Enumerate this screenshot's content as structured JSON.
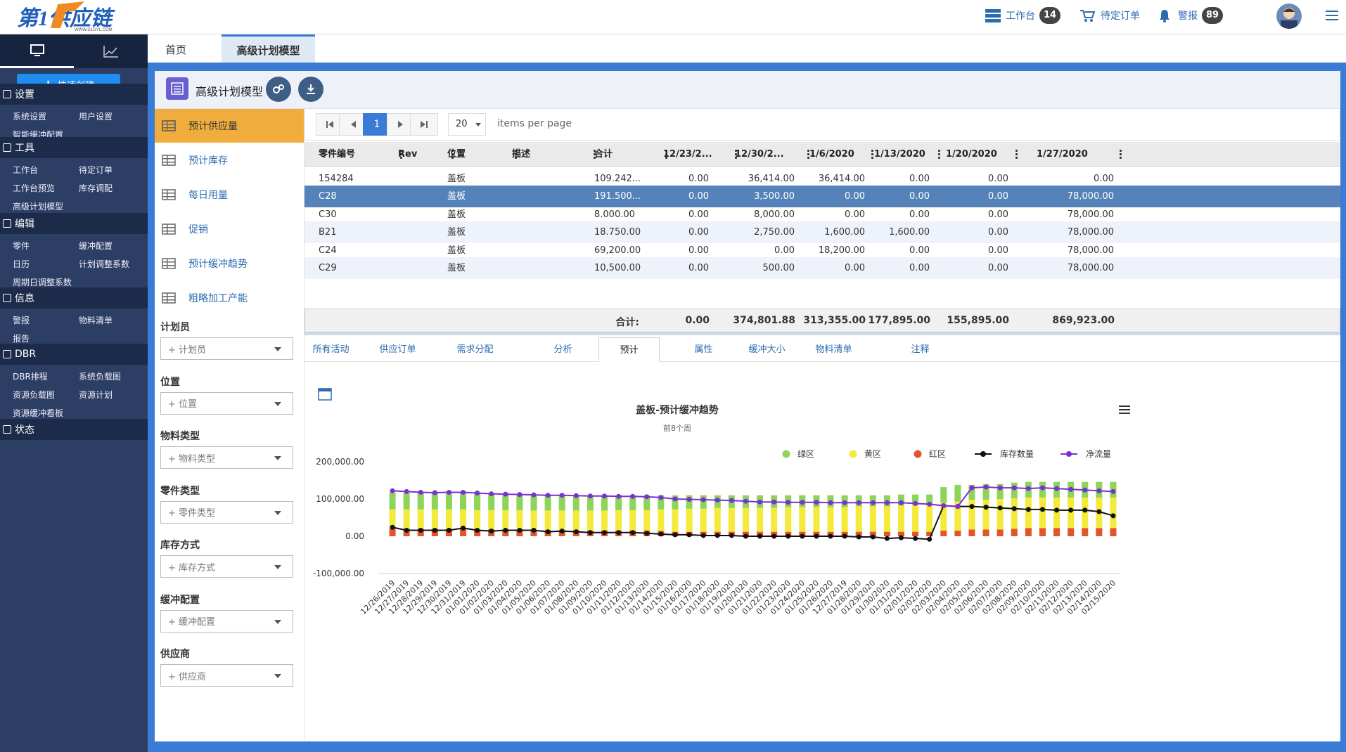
{
  "header": {
    "logo_text": "第1供应链",
    "logo_sub": "WWW.D1GYL.COM",
    "workbench": {
      "label": "工作台",
      "count": "14"
    },
    "pending_orders": "待定订单",
    "alerts": {
      "label": "警报",
      "count": "89"
    }
  },
  "sidebar": {
    "quick_create": "快速创建",
    "sections": [
      {
        "title": "设置",
        "links": [
          "系统设置",
          "用户设置",
          "智能缓冲配置"
        ]
      },
      {
        "title": "工具",
        "links": [
          "工作台",
          "待定订单",
          "工作台预览",
          "库存调配",
          "高级计划模型"
        ]
      },
      {
        "title": "编辑",
        "links": [
          "零件",
          "缓冲配置",
          "日历",
          "计划调整系数",
          "周期日调整系数"
        ]
      },
      {
        "title": "信息",
        "links": [
          "警报",
          "物料清单",
          "报告"
        ]
      },
      {
        "title": "DBR",
        "links": [
          "DBR排程",
          "系统负载图",
          "资源负载图",
          "资源计划",
          "资源缓冲看板"
        ]
      },
      {
        "title": "状态",
        "links": []
      }
    ]
  },
  "tabs": [
    "首页",
    "高级计划模型"
  ],
  "panel": {
    "title": "高级计划模型"
  },
  "leftnav": [
    "预计供应量",
    "预计库存",
    "每日用量",
    "促销",
    "预计缓冲趋势",
    "粗略加工产能"
  ],
  "filters": [
    {
      "label": "计划员",
      "placeholder": "+ 计划员"
    },
    {
      "label": "位置",
      "placeholder": "+ 位置"
    },
    {
      "label": "物料类型",
      "placeholder": "+ 物料类型"
    },
    {
      "label": "零件类型",
      "placeholder": "+ 零件类型"
    },
    {
      "label": "库存方式",
      "placeholder": "+ 库存方式"
    },
    {
      "label": "缓冲配置",
      "placeholder": "+ 缓冲配置"
    },
    {
      "label": "供应商",
      "placeholder": "+ 供应商"
    }
  ],
  "pager": {
    "page": "1",
    "page_size": "20",
    "items_per_page": "items per page"
  },
  "table": {
    "columns": [
      "零件编号",
      "Rev",
      "位置",
      "描述",
      "合计",
      "12/23/2...",
      "12/30/2...",
      "1/6/2020",
      "1/13/2020",
      "1/20/2020",
      "1/27/2020"
    ],
    "rows": [
      [
        "154284",
        "",
        "盖板",
        "",
        "109.242...",
        "0.00",
        "36,414.00",
        "36,414.00",
        "0.00",
        "0.00",
        "0.00"
      ],
      [
        "C28",
        "",
        "盖板",
        "",
        "191.500...",
        "0.00",
        "3,500.00",
        "0.00",
        "0.00",
        "0.00",
        "78,000.00"
      ],
      [
        "C30",
        "",
        "盖板",
        "",
        "8.000.00",
        "0.00",
        "8,000.00",
        "0.00",
        "0.00",
        "0.00",
        "78,000.00"
      ],
      [
        "B21",
        "",
        "盖板",
        "",
        "18.750.00",
        "0.00",
        "2,750.00",
        "1,600.00",
        "1,600.00",
        "0.00",
        "78,000.00"
      ],
      [
        "C24",
        "",
        "盖板",
        "",
        "69,200.00",
        "0.00",
        "0.00",
        "18,200.00",
        "0.00",
        "0.00",
        "78,000.00"
      ],
      [
        "C29",
        "",
        "盖板",
        "",
        "10,500.00",
        "0.00",
        "500.00",
        "0.00",
        "0.00",
        "0.00",
        "78,000.00"
      ]
    ],
    "selected_row": 1,
    "total_label": "合计:",
    "totals": [
      "0.00",
      "374,801.88",
      "313,355.00",
      "177,895.00",
      "155,895.00",
      "869,923.00"
    ]
  },
  "bottom_tabs": [
    "所有活动",
    "供应订单",
    "需求分配",
    "分析",
    "预计",
    "属性",
    "缓冲大小",
    "物料清单",
    "注释"
  ],
  "bottom_active": 4,
  "chart_data": {
    "type": "bar",
    "title": "盖板-预计缓冲趋势",
    "subtitle": "前8个周",
    "legend_position": "top-right",
    "y_ticks": [
      "200,000.00",
      "100,000.00",
      "0.00",
      "-100,000.00"
    ],
    "ylim": [
      -100000,
      200000
    ],
    "categories": [
      "12/26/2019",
      "12/27/2019",
      "12/28/2019",
      "12/29/2019",
      "12/30/2019",
      "12/31/2019",
      "01/01/2020",
      "01/02/2020",
      "01/03/2020",
      "01/04/2020",
      "01/05/2020",
      "01/06/2020",
      "01/07/2020",
      "01/08/2020",
      "01/09/2020",
      "01/10/2020",
      "01/11/2020",
      "01/12/2020",
      "01/13/2020",
      "01/14/2020",
      "01/15/2020",
      "01/16/2020",
      "01/17/2020",
      "01/18/2020",
      "01/19/2020",
      "01/20/2020",
      "01/21/2020",
      "01/22/2020",
      "01/23/2020",
      "01/24/2020",
      "01/25/2020",
      "01/26/2020",
      "12/27/2019",
      "01/28/2020",
      "01/29/2020",
      "01/30/2020",
      "01/31/2020",
      "02/01/2020",
      "02/02/2020",
      "02/03/2020",
      "02/04/2020",
      "02/05/2020",
      "02/06/2020",
      "02/07/2020",
      "02/08/2020",
      "02/09/2020",
      "02/10/2020",
      "02/11/2020",
      "02/12/2020",
      "02/13/2020",
      "02/14/2020",
      "02/15/2020"
    ],
    "series": [
      {
        "name": "红区",
        "color": "#e2552b",
        "values": [
          20000,
          20000,
          20000,
          20000,
          20000,
          20000,
          18000,
          18000,
          18000,
          18000,
          17000,
          16000,
          16000,
          16000,
          15000,
          15000,
          15000,
          15000,
          15000,
          14000,
          12000,
          12000,
          12000,
          12000,
          12000,
          12000,
          12000,
          12000,
          12000,
          12000,
          12000,
          12000,
          12000,
          12000,
          12000,
          12000,
          12000,
          12000,
          12000,
          15000,
          15000,
          18000,
          18000,
          18000,
          20000,
          22000,
          22000,
          22000,
          22000,
          22000,
          22000,
          22000
        ]
      },
      {
        "name": "黄区",
        "color": "#f3ea3b",
        "values": [
          52000,
          52000,
          52000,
          52000,
          52000,
          52000,
          52000,
          52000,
          52000,
          52000,
          52000,
          53000,
          53000,
          53000,
          54000,
          54000,
          55000,
          55000,
          55000,
          58000,
          60000,
          62000,
          62000,
          64000,
          64000,
          64000,
          64000,
          64000,
          66000,
          66000,
          66000,
          66000,
          66000,
          68000,
          68000,
          68000,
          70000,
          72000,
          72000,
          75000,
          78000,
          80000,
          80000,
          82000,
          82000,
          82000,
          82000,
          82000,
          82000,
          82000,
          82000,
          82000
        ]
      },
      {
        "name": "绿区",
        "color": "#8dd45a",
        "values": [
          45000,
          45000,
          45000,
          45000,
          45000,
          45000,
          45000,
          44000,
          44000,
          42000,
          42000,
          40000,
          40000,
          40000,
          40000,
          40000,
          40000,
          40000,
          40000,
          38000,
          38000,
          36000,
          36000,
          34000,
          34000,
          34000,
          34000,
          34000,
          32000,
          32000,
          32000,
          32000,
          32000,
          30000,
          30000,
          30000,
          30000,
          28000,
          28000,
          42000,
          45000,
          40000,
          42000,
          40000,
          42000,
          42000,
          42000,
          42000,
          42000,
          42000,
          42000,
          42000
        ]
      },
      {
        "name": "库存数量",
        "color": "#111111",
        "values": [
          24000,
          16000,
          16000,
          16000,
          16000,
          22000,
          16000,
          14000,
          16000,
          16000,
          16000,
          12000,
          14000,
          12000,
          10000,
          10000,
          10000,
          10000,
          8000,
          6000,
          4000,
          4000,
          2000,
          2000,
          2000,
          0,
          0,
          0,
          0,
          0,
          0,
          0,
          0,
          -2000,
          -2000,
          -6000,
          -4000,
          -6000,
          -8000,
          82000,
          80000,
          80000,
          78000,
          76000,
          74000,
          72000,
          72000,
          70000,
          70000,
          70000,
          66000,
          55000
        ]
      },
      {
        "name": "净流量",
        "color": "#7b2fd6",
        "values": [
          122000,
          120000,
          118000,
          117000,
          118000,
          118000,
          116000,
          114000,
          113000,
          112000,
          111000,
          110000,
          110000,
          109000,
          108000,
          108000,
          107000,
          107000,
          106000,
          104000,
          100000,
          99000,
          98000,
          97000,
          96000,
          94000,
          92000,
          92000,
          91000,
          91000,
          91000,
          90000,
          90000,
          90000,
          90000,
          90000,
          90000,
          88000,
          86000,
          82000,
          80000,
          130000,
          132000,
          130000,
          130000,
          128000,
          130000,
          128000,
          126000,
          124000,
          122000,
          120000
        ]
      }
    ]
  }
}
